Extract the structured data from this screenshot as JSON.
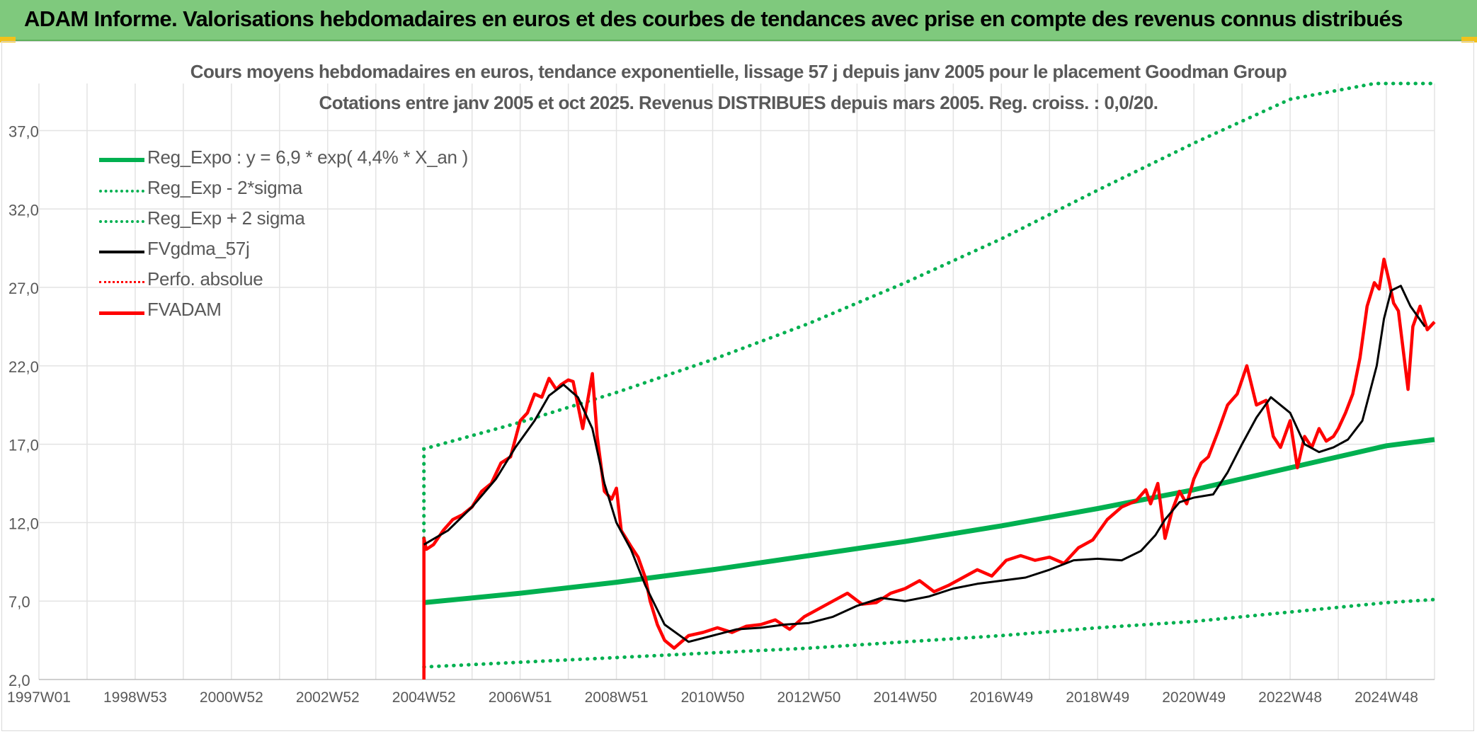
{
  "banner": {
    "title": "ADAM Informe. Valorisations hebdomadaires en euros et des courbes de tendances avec prise en compte des revenus connus distribués"
  },
  "colors": {
    "banner_bg": "#7fc97d",
    "corner_accent": "#f2c11b",
    "regression": "#00b050",
    "smoothed": "#000000",
    "price": "#ff0000"
  },
  "chart_data": {
    "type": "line",
    "title": "Cours moyens hebdomadaires en euros, tendance exponentielle, lissage 57 j depuis janv 2005 pour le placement Goodman Group",
    "subtitle": "Cotations entre janv 2005 et oct 2025. Revenus DISTRIBUES depuis mars 2005. Reg. croiss. : 0,0/20.",
    "xlabel": "",
    "ylabel": "",
    "x_range": [
      1997.0,
      2026.0
    ],
    "ylim": [
      2.0,
      40.0
    ],
    "y_ticks": [
      2.0,
      7.0,
      12.0,
      17.0,
      22.0,
      27.0,
      32.0,
      37.0
    ],
    "y_tick_labels": [
      "2,0",
      "7,0",
      "12,0",
      "17,0",
      "22,0",
      "27,0",
      "32,0",
      "37,0"
    ],
    "x_ticks": [
      1997.0,
      1999.0,
      2001.0,
      2003.0,
      2005.0,
      2007.0,
      2009.0,
      2011.0,
      2013.0,
      2015.0,
      2017.0,
      2019.0,
      2021.0,
      2023.0,
      2025.0
    ],
    "x_tick_labels": [
      "1997W01",
      "1998W53",
      "2000W52",
      "2002W52",
      "2004W52",
      "2006W51",
      "2008W51",
      "2010W50",
      "2012W50",
      "2014W50",
      "2016W49",
      "2018W49",
      "2020W49",
      "2022W48",
      "2024W48"
    ],
    "grid": true,
    "legend_position": "top-left",
    "series": [
      {
        "name": "Reg_Expo : y = 6,9 * exp( 4,4% *  X_an )",
        "style": "solid-thick",
        "color": "#00b050",
        "x": [
          2005.0,
          2007.0,
          2009.0,
          2011.0,
          2013.0,
          2015.0,
          2017.0,
          2019.0,
          2021.0,
          2023.0,
          2025.0,
          2026.0
        ],
        "y": [
          6.9,
          7.5,
          8.2,
          9.0,
          9.9,
          10.8,
          11.8,
          12.9,
          14.1,
          15.5,
          16.9,
          17.3
        ]
      },
      {
        "name": "Reg_Exp - 2*sigma",
        "style": "dotted",
        "color": "#00b050",
        "x": [
          2005.0,
          2007.0,
          2009.0,
          2011.0,
          2013.0,
          2015.0,
          2017.0,
          2019.0,
          2021.0,
          2023.0,
          2025.0,
          2026.0
        ],
        "y": [
          2.8,
          3.1,
          3.4,
          3.7,
          4.0,
          4.4,
          4.8,
          5.3,
          5.7,
          6.3,
          6.9,
          7.1
        ]
      },
      {
        "name": "Reg_Exp + 2 sigma",
        "style": "dotted",
        "color": "#00b050",
        "x": [
          2005.0,
          2005.0,
          2007.0,
          2009.0,
          2011.0,
          2013.0,
          2015.0,
          2017.0,
          2019.0,
          2021.0,
          2023.0,
          2024.75,
          2026.0
        ],
        "y": [
          11.0,
          16.7,
          18.4,
          20.3,
          22.4,
          24.7,
          27.3,
          30.1,
          33.2,
          36.2,
          39.0,
          40.0,
          40.0
        ]
      },
      {
        "name": "FVgdma_57j",
        "style": "solid",
        "color": "#000000",
        "x": [
          2005.0,
          2005.5,
          2006.0,
          2006.5,
          2006.9,
          2007.3,
          2007.6,
          2007.9,
          2008.2,
          2008.5,
          2008.75,
          2009.0,
          2009.3,
          2009.6,
          2010.0,
          2010.5,
          2011.0,
          2011.5,
          2012.0,
          2012.5,
          2013.0,
          2013.5,
          2014.0,
          2014.5,
          2015.0,
          2015.5,
          2016.0,
          2016.5,
          2017.0,
          2017.5,
          2018.0,
          2018.5,
          2019.0,
          2019.5,
          2019.9,
          2020.2,
          2020.4,
          2020.7,
          2021.0,
          2021.4,
          2021.7,
          2022.0,
          2022.3,
          2022.6,
          2023.0,
          2023.3,
          2023.6,
          2023.9,
          2024.2,
          2024.5,
          2024.8,
          2024.95,
          2025.1,
          2025.3,
          2025.5,
          2025.8
        ],
        "y": [
          10.6,
          11.5,
          13.0,
          14.8,
          16.8,
          18.5,
          20.1,
          20.8,
          20.0,
          18.0,
          14.5,
          12.0,
          10.3,
          8.0,
          5.5,
          4.4,
          4.8,
          5.2,
          5.3,
          5.5,
          5.6,
          6.0,
          6.7,
          7.2,
          7.0,
          7.3,
          7.8,
          8.1,
          8.3,
          8.5,
          9.0,
          9.6,
          9.7,
          9.6,
          10.2,
          11.2,
          12.2,
          13.3,
          13.6,
          13.8,
          15.2,
          17.0,
          18.7,
          20.0,
          19.0,
          17.0,
          16.5,
          16.8,
          17.3,
          18.5,
          22.0,
          25.0,
          26.8,
          27.1,
          25.8,
          24.5
        ]
      },
      {
        "name": "Perfo. absolue",
        "style": "dotted",
        "color": "#ff0000",
        "x": [],
        "y": []
      },
      {
        "name": "FVADAM",
        "style": "solid-thick",
        "color": "#ff0000",
        "x": [
          2005.0,
          2005.0,
          2005.05,
          2005.2,
          2005.4,
          2005.6,
          2005.8,
          2006.0,
          2006.2,
          2006.4,
          2006.6,
          2006.8,
          2007.0,
          2007.15,
          2007.3,
          2007.45,
          2007.6,
          2007.75,
          2007.85,
          2008.0,
          2008.1,
          2008.3,
          2008.5,
          2008.6,
          2008.75,
          2008.9,
          2009.0,
          2009.1,
          2009.3,
          2009.45,
          2009.6,
          2009.7,
          2009.85,
          2010.0,
          2010.2,
          2010.5,
          2010.8,
          2011.1,
          2011.4,
          2011.7,
          2012.0,
          2012.3,
          2012.6,
          2012.9,
          2013.2,
          2013.5,
          2013.8,
          2014.1,
          2014.4,
          2014.7,
          2015.0,
          2015.3,
          2015.6,
          2015.9,
          2016.2,
          2016.5,
          2016.8,
          2017.1,
          2017.4,
          2017.7,
          2018.0,
          2018.3,
          2018.6,
          2018.9,
          2019.2,
          2019.5,
          2019.8,
          2020.0,
          2020.1,
          2020.25,
          2020.4,
          2020.55,
          2020.7,
          2020.85,
          2021.0,
          2021.15,
          2021.3,
          2021.5,
          2021.7,
          2021.9,
          2022.1,
          2022.3,
          2022.5,
          2022.65,
          2022.8,
          2023.0,
          2023.15,
          2023.3,
          2023.45,
          2023.6,
          2023.75,
          2023.9,
          2024.0,
          2024.15,
          2024.3,
          2024.45,
          2024.6,
          2024.75,
          2024.85,
          2024.95,
          2025.05,
          2025.15,
          2025.25,
          2025.35,
          2025.45,
          2025.55,
          2025.7,
          2025.85,
          2026.0
        ],
        "y": [
          2.0,
          11.0,
          10.3,
          10.6,
          11.5,
          12.2,
          12.5,
          13.0,
          14.0,
          14.5,
          15.8,
          16.2,
          18.5,
          19.0,
          20.2,
          20.0,
          21.2,
          20.5,
          20.8,
          21.1,
          21.0,
          18.0,
          21.5,
          17.5,
          14.0,
          13.5,
          14.2,
          11.5,
          10.5,
          9.8,
          8.5,
          7.0,
          5.5,
          4.5,
          4.0,
          4.8,
          5.0,
          5.3,
          5.0,
          5.4,
          5.5,
          5.8,
          5.2,
          6.0,
          6.5,
          7.0,
          7.5,
          6.8,
          6.9,
          7.5,
          7.8,
          8.3,
          7.6,
          8.0,
          8.5,
          9.0,
          8.6,
          9.6,
          9.9,
          9.6,
          9.8,
          9.4,
          10.4,
          10.9,
          12.2,
          13.0,
          13.4,
          14.1,
          13.2,
          14.5,
          11.0,
          12.8,
          14.0,
          13.2,
          14.8,
          15.8,
          16.2,
          17.8,
          19.5,
          20.2,
          22.0,
          19.5,
          19.8,
          17.5,
          16.8,
          18.5,
          15.5,
          17.5,
          16.8,
          18.0,
          17.2,
          17.5,
          18.0,
          19.0,
          20.2,
          22.5,
          25.8,
          27.3,
          26.9,
          28.8,
          27.5,
          26.0,
          25.5,
          23.0,
          20.5,
          24.5,
          25.8,
          24.3,
          24.8
        ]
      }
    ]
  }
}
